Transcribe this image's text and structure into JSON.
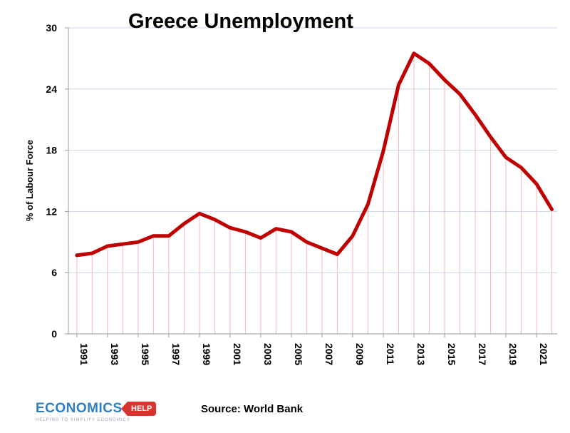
{
  "chart_data": {
    "type": "line",
    "title": "Greece Unemployment",
    "ylabel": "% of Labour Force",
    "xlabel": "",
    "ylim": [
      0,
      30
    ],
    "yticks": [
      0,
      6,
      12,
      18,
      24,
      30
    ],
    "xtick_labels": [
      "1991",
      "1993",
      "1995",
      "1997",
      "1999",
      "2001",
      "2003",
      "2005",
      "2007",
      "2009",
      "2011",
      "2013",
      "2015",
      "2017",
      "2019",
      "2021"
    ],
    "x": [
      1991,
      1992,
      1993,
      1994,
      1995,
      1996,
      1997,
      1998,
      1999,
      2000,
      2001,
      2002,
      2003,
      2004,
      2005,
      2006,
      2007,
      2008,
      2009,
      2010,
      2011,
      2012,
      2013,
      2014,
      2015,
      2016,
      2017,
      2018,
      2019,
      2020,
      2021,
      2022
    ],
    "values": [
      7.7,
      7.9,
      8.6,
      8.8,
      9.0,
      9.6,
      9.6,
      10.8,
      11.8,
      11.2,
      10.4,
      10.0,
      9.4,
      10.3,
      10.0,
      9.0,
      8.4,
      7.8,
      9.6,
      12.7,
      17.9,
      24.4,
      27.5,
      26.5,
      24.9,
      23.5,
      21.5,
      19.3,
      17.3,
      16.3,
      14.7,
      12.2
    ],
    "line_color": "#c00000",
    "drop_line_color": "#f2b8b8",
    "grid": true
  },
  "source": "Source: World Bank",
  "logo": {
    "main": "ECONOMICS",
    "tag": "HELP",
    "sub": "HELPING TO SIMPLIFY ECONOMICS"
  }
}
